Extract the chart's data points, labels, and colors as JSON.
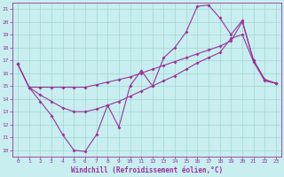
{
  "xlabel": "Windchill (Refroidissement éolien,°C)",
  "background_color": "#c8eef0",
  "grid_color": "#a0d8d0",
  "line_color": "#993399",
  "xlim": [
    -0.5,
    23.5
  ],
  "ylim": [
    9.5,
    21.5
  ],
  "xticks": [
    0,
    1,
    2,
    3,
    4,
    5,
    6,
    7,
    8,
    9,
    10,
    11,
    12,
    13,
    14,
    15,
    16,
    17,
    18,
    19,
    20,
    21,
    22,
    23
  ],
  "yticks": [
    10,
    11,
    12,
    13,
    14,
    15,
    16,
    17,
    18,
    19,
    20,
    21
  ],
  "line1_x": [
    0,
    1,
    2,
    3,
    4,
    5,
    6,
    7,
    8,
    9,
    10,
    11,
    12,
    13,
    14,
    15,
    16,
    17,
    18,
    19,
    20,
    21,
    22,
    23
  ],
  "line1_y": [
    16.7,
    14.9,
    13.8,
    12.7,
    11.2,
    10.0,
    9.9,
    11.2,
    13.5,
    11.8,
    15.0,
    16.2,
    15.0,
    17.2,
    18.0,
    19.2,
    21.2,
    21.3,
    20.3,
    19.0,
    20.1,
    17.0,
    15.5,
    15.2
  ],
  "line2_x": [
    0,
    1,
    2,
    3,
    4,
    5,
    6,
    7,
    8,
    9,
    10,
    11,
    12,
    13,
    14,
    15,
    16,
    17,
    18,
    19,
    20,
    21,
    22,
    23
  ],
  "line2_y": [
    16.7,
    14.9,
    14.9,
    14.9,
    14.9,
    14.9,
    14.9,
    15.1,
    15.3,
    15.5,
    15.7,
    16.0,
    16.3,
    16.6,
    16.9,
    17.2,
    17.5,
    17.8,
    18.1,
    18.5,
    20.0,
    17.0,
    15.5,
    15.2
  ],
  "line3_x": [
    0,
    1,
    2,
    3,
    4,
    5,
    6,
    7,
    8,
    9,
    10,
    11,
    12,
    13,
    14,
    15,
    16,
    17,
    18,
    19,
    20,
    21,
    22,
    23
  ],
  "line3_y": [
    16.7,
    14.9,
    14.3,
    13.8,
    13.3,
    13.0,
    13.0,
    13.2,
    13.5,
    13.8,
    14.2,
    14.6,
    15.0,
    15.4,
    15.8,
    16.3,
    16.8,
    17.2,
    17.6,
    18.7,
    19.0,
    16.9,
    15.4,
    15.2
  ],
  "marker_size": 2,
  "line_width": 0.8,
  "tick_fontsize": 4.5,
  "label_fontsize": 5.5,
  "spine_color": "#993399"
}
